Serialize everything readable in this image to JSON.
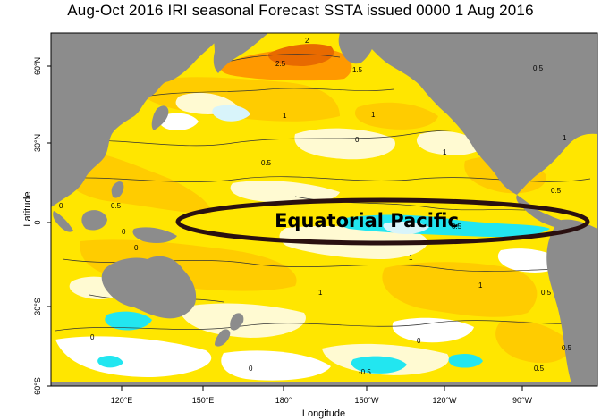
{
  "title": "Aug-Oct 2016 IRI seasonal Forecast SSTA issued 0000 1 Aug 2016",
  "annotation": "Equatorial Pacific",
  "xlabel": "Longitude",
  "ylabel": "Latitude",
  "x_ticks": [
    "120°E",
    "150°E",
    "180°",
    "150°W",
    "120°W",
    "90°W"
  ],
  "y_ticks": [
    "60°N",
    "30°N",
    "0",
    "30°S",
    "60°S"
  ],
  "contour_labels": [
    "2",
    "2.5",
    "1.5",
    "0.5",
    "1",
    "1",
    "0",
    "0.5",
    "1",
    "1",
    "0.5",
    "0",
    "0.5",
    "0",
    "0.5",
    "1",
    "0",
    "1",
    "1",
    "0.5",
    "0",
    "0",
    "0.5",
    "0",
    "-0.5",
    "0.5"
  ],
  "colors": {
    "land": "#8c8c8c",
    "near_zero": "#ffffff",
    "weak_warm": "#fffad2",
    "warm_yellow": "#ffe600",
    "gold": "#ffcc00",
    "orange": "#ff9900",
    "dark_orange": "#e86a00",
    "light_cyan": "#d8f4fa",
    "cyan": "#22e6f0",
    "ellipse": "#2a1010"
  }
}
